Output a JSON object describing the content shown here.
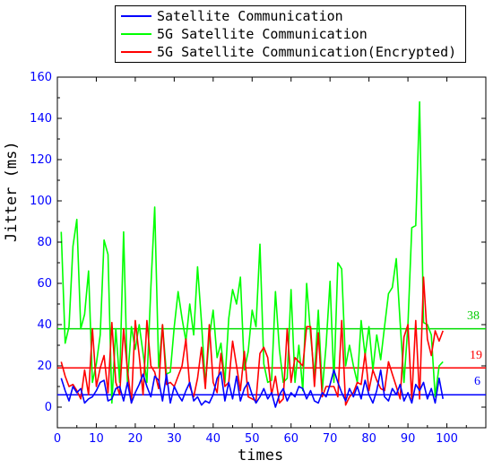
{
  "chart_data": {
    "type": "line",
    "title": "",
    "xlabel": "times",
    "ylabel": "Jitter (ms)",
    "xlim": [
      0,
      110
    ],
    "ylim": [
      -10,
      160
    ],
    "x_ticks": [
      "0",
      "10",
      "20",
      "30",
      "40",
      "50",
      "60",
      "70",
      "80",
      "90",
      "100"
    ],
    "y_ticks": [
      "0",
      "20",
      "40",
      "60",
      "80",
      "100",
      "120",
      "140",
      "160"
    ],
    "legend_position": "top",
    "series": [
      {
        "name": "Satellite Communication",
        "color": "#0000ff",
        "x": [
          1,
          2,
          3,
          4,
          5,
          6,
          7,
          8,
          9,
          10,
          11,
          12,
          13,
          14,
          15,
          16,
          17,
          18,
          19,
          20,
          21,
          22,
          23,
          24,
          25,
          26,
          27,
          28,
          29,
          30,
          31,
          32,
          33,
          34,
          35,
          36,
          37,
          38,
          39,
          40,
          41,
          42,
          43,
          44,
          45,
          46,
          47,
          48,
          49,
          50,
          51,
          52,
          53,
          54,
          55,
          56,
          57,
          58,
          59,
          60,
          61,
          62,
          63,
          64,
          65,
          66,
          67,
          68,
          69,
          70,
          71,
          72,
          73,
          74,
          75,
          76,
          77,
          78,
          79,
          80,
          81,
          82,
          83,
          84,
          85,
          86,
          87,
          88,
          89,
          90,
          91,
          92,
          93,
          94,
          95,
          96,
          97,
          98,
          99
        ],
        "values": [
          14,
          8,
          3,
          10,
          7,
          9,
          2,
          4,
          5,
          8,
          12,
          13,
          3,
          4,
          9,
          10,
          3,
          12,
          2,
          7,
          11,
          16,
          10,
          5,
          15,
          13,
          3,
          16,
          2,
          10,
          6,
          3,
          8,
          12,
          3,
          5,
          1,
          3,
          2,
          6,
          14,
          17,
          3,
          12,
          4,
          15,
          3,
          9,
          12,
          6,
          2,
          5,
          9,
          4,
          7,
          0,
          6,
          9,
          3,
          7,
          5,
          10,
          9,
          4,
          8,
          3,
          2,
          7,
          5,
          11,
          18,
          12,
          7,
          3,
          9,
          5,
          10,
          4,
          13,
          6,
          2,
          8,
          18,
          5,
          3,
          9,
          6,
          11,
          3,
          7,
          2,
          11,
          8,
          12,
          4,
          9,
          2,
          14,
          4
        ]
      },
      {
        "name": "5G Satellite Communication",
        "color": "#00ff00",
        "x": [
          1,
          2,
          3,
          4,
          5,
          6,
          7,
          8,
          9,
          10,
          11,
          12,
          13,
          14,
          15,
          16,
          17,
          18,
          19,
          20,
          21,
          22,
          23,
          24,
          25,
          26,
          27,
          28,
          29,
          30,
          31,
          32,
          33,
          34,
          35,
          36,
          37,
          38,
          39,
          40,
          41,
          42,
          43,
          44,
          45,
          46,
          47,
          48,
          49,
          50,
          51,
          52,
          53,
          54,
          55,
          56,
          57,
          58,
          59,
          60,
          61,
          62,
          63,
          64,
          65,
          66,
          67,
          68,
          69,
          70,
          71,
          72,
          73,
          74,
          75,
          76,
          77,
          78,
          79,
          80,
          81,
          82,
          83,
          84,
          85,
          86,
          87,
          88,
          89,
          90,
          91,
          92,
          93,
          94,
          95,
          96,
          97,
          98,
          99
        ],
        "values": [
          85,
          31,
          39,
          78,
          91,
          38,
          45,
          66,
          12,
          21,
          35,
          81,
          74,
          2,
          38,
          12,
          85,
          12,
          39,
          28,
          40,
          26,
          12,
          58,
          97,
          19,
          40,
          16,
          17,
          39,
          56,
          43,
          32,
          50,
          35,
          68,
          41,
          11,
          34,
          47,
          24,
          31,
          12,
          43,
          57,
          50,
          63,
          18,
          27,
          47,
          39,
          79,
          21,
          12,
          13,
          56,
          28,
          12,
          14,
          57,
          12,
          30,
          8,
          60,
          35,
          15,
          47,
          8,
          30,
          61,
          12,
          70,
          67,
          20,
          30,
          20,
          12,
          42,
          25,
          39,
          18,
          35,
          23,
          39,
          55,
          58,
          72,
          41,
          12,
          40,
          87,
          88,
          148,
          41,
          40,
          35,
          5,
          20,
          22
        ]
      },
      {
        "name": "5G Satellite Communication(Encrypted)",
        "color": "#ff0000",
        "x": [
          1,
          2,
          3,
          4,
          5,
          6,
          7,
          8,
          9,
          10,
          11,
          12,
          13,
          14,
          15,
          16,
          17,
          18,
          19,
          20,
          21,
          22,
          23,
          24,
          25,
          26,
          27,
          28,
          29,
          30,
          31,
          32,
          33,
          34,
          35,
          36,
          37,
          38,
          39,
          40,
          41,
          42,
          43,
          44,
          45,
          46,
          47,
          48,
          49,
          50,
          51,
          52,
          53,
          54,
          55,
          56,
          57,
          58,
          59,
          60,
          61,
          62,
          63,
          64,
          65,
          66,
          67,
          68,
          69,
          70,
          71,
          72,
          73,
          74,
          75,
          76,
          77,
          78,
          79,
          80,
          81,
          82,
          83,
          84,
          85,
          86,
          87,
          88,
          89,
          90,
          91,
          92,
          93,
          94,
          95,
          96,
          97,
          98,
          99
        ],
        "values": [
          22,
          15,
          10,
          11,
          8,
          4,
          18,
          6,
          38,
          10,
          19,
          25,
          7,
          41,
          12,
          6,
          38,
          18,
          2,
          42,
          25,
          6,
          42,
          20,
          17,
          9,
          40,
          11,
          12,
          10,
          15,
          20,
          33,
          10,
          5,
          14,
          29,
          9,
          40,
          12,
          7,
          26,
          10,
          12,
          32,
          20,
          8,
          27,
          5,
          4,
          3,
          26,
          29,
          24,
          6,
          15,
          2,
          4,
          38,
          12,
          24,
          22,
          20,
          39,
          39,
          10,
          36,
          5,
          10,
          10,
          10,
          5,
          42,
          1,
          5,
          7,
          12,
          11,
          26,
          8,
          18,
          13,
          9,
          8,
          22,
          16,
          10,
          4,
          34,
          40,
          4,
          42,
          4,
          63,
          33,
          25,
          37,
          32,
          37
        ]
      }
    ],
    "reference_lines": [
      {
        "value": 38,
        "label": "38",
        "color": "#00dd00"
      },
      {
        "value": 19,
        "label": "19",
        "color": "#ff0000"
      },
      {
        "value": 6,
        "label": "6",
        "color": "#0000ff"
      }
    ]
  },
  "colors": {
    "axis_tick_text": "#0000ff",
    "axis_line": "#000000"
  }
}
